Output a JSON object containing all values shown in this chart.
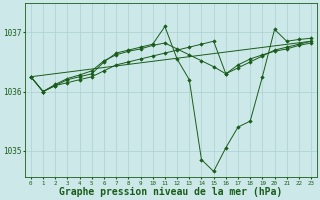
{
  "background_color": "#cce8e8",
  "grid_color": "#aad0d0",
  "line_color": "#1a5c1a",
  "marker_color": "#1a5c1a",
  "xlabel": "Graphe pression niveau de la mer (hPa)",
  "xlabel_fontsize": 7,
  "xlim": [
    -0.5,
    23.5
  ],
  "ylim": [
    1034.55,
    1037.5
  ],
  "yticks": [
    1035,
    1036,
    1037
  ],
  "xticks": [
    0,
    1,
    2,
    3,
    4,
    5,
    6,
    7,
    8,
    9,
    10,
    11,
    12,
    13,
    14,
    15,
    16,
    17,
    18,
    19,
    20,
    21,
    22,
    23
  ],
  "series": [
    {
      "x": [
        0,
        1,
        2,
        3,
        4,
        5,
        6,
        7,
        8,
        9,
        10,
        11,
        12,
        13,
        14,
        15,
        16,
        17,
        18,
        19,
        20,
        21,
        22,
        23
      ],
      "y": [
        1036.25,
        1036.0,
        1036.1,
        1036.15,
        1036.2,
        1036.25,
        1036.35,
        1036.45,
        1036.5,
        1036.55,
        1036.6,
        1036.65,
        1036.7,
        1036.75,
        1036.8,
        1036.85,
        1036.3,
        1036.4,
        1036.5,
        1036.6,
        1036.7,
        1036.75,
        1036.8,
        1036.85
      ],
      "has_markers": true
    },
    {
      "x": [
        0,
        1,
        2,
        3,
        4,
        5,
        6,
        7,
        8,
        9,
        10,
        11,
        12,
        13,
        14,
        15,
        16,
        17,
        18,
        19,
        20,
        21,
        22,
        23
      ],
      "y": [
        1036.25,
        1036.0,
        1036.1,
        1036.2,
        1036.25,
        1036.3,
        1036.5,
        1036.65,
        1036.7,
        1036.75,
        1036.8,
        1037.1,
        1036.55,
        1036.2,
        1034.85,
        1034.65,
        1035.05,
        1035.4,
        1035.5,
        1036.25,
        1037.05,
        1036.85,
        1036.88,
        1036.9
      ],
      "has_markers": true
    },
    {
      "x": [
        0,
        1,
        2,
        3,
        4,
        5,
        6,
        7,
        8,
        9,
        10,
        11,
        12,
        13,
        14,
        15,
        16,
        17,
        18,
        19,
        20,
        21,
        22,
        23
      ],
      "y": [
        1036.25,
        1036.0,
        1036.12,
        1036.22,
        1036.28,
        1036.35,
        1036.52,
        1036.62,
        1036.68,
        1036.72,
        1036.78,
        1036.82,
        1036.72,
        1036.62,
        1036.52,
        1036.42,
        1036.3,
        1036.45,
        1036.55,
        1036.62,
        1036.68,
        1036.72,
        1036.78,
        1036.82
      ],
      "has_markers": true
    },
    {
      "x": [
        0,
        23
      ],
      "y": [
        1036.25,
        1036.85
      ],
      "has_markers": false
    }
  ]
}
